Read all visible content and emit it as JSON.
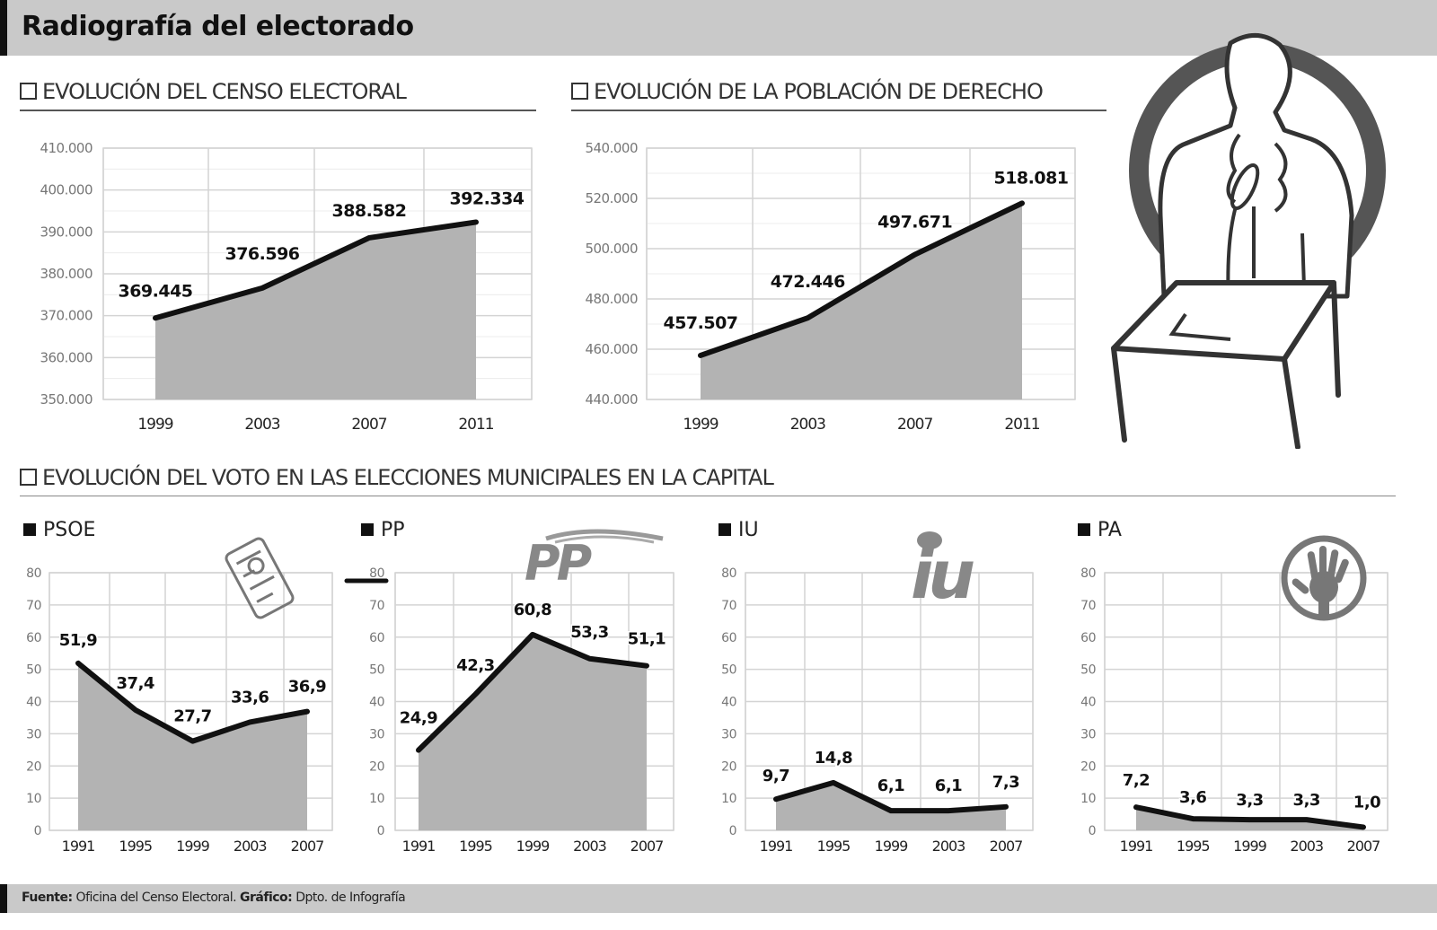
{
  "header": {
    "title": "Radiografía del electorado"
  },
  "sections": {
    "censo_title": "EVOLUCIÓN DEL CENSO ELECTORAL",
    "poblacion_title": "EVOLUCIÓN DE LA POBLACIÓN DE DERECHO",
    "voto_title": "EVOLUCIÓN DEL VOTO EN LAS ELECCIONES MUNICIPALES EN LA CAPITAL"
  },
  "parties": {
    "psoe": "PSOE",
    "pp": "PP",
    "iu": "IU",
    "pa": "PA"
  },
  "logos": {
    "pp_logo_text": "PP",
    "iu_logo_text": "iu"
  },
  "footer": {
    "source_label": "Fuente:",
    "source_value": "Oficina del Censo Electoral.",
    "graphic_label": "Gráfico:",
    "graphic_value": "Dpto. de Infografía"
  },
  "colors": {
    "fill": "#b3b3b3",
    "line": "#111111",
    "grid": "#d4d4d4",
    "bar": "#c9c9c9"
  },
  "chart_data": [
    {
      "id": "censo",
      "type": "area",
      "title": "EVOLUCIÓN DEL CENSO ELECTORAL",
      "categories": [
        "1999",
        "2003",
        "2007",
        "2011"
      ],
      "values": [
        369445,
        376596,
        388582,
        392334
      ],
      "labels": [
        "369.445",
        "376.596",
        "388.582",
        "392.334"
      ],
      "ylim": [
        350000,
        410000
      ],
      "yticks": [
        410000,
        400000,
        390000,
        380000,
        370000,
        360000,
        350000
      ],
      "ytick_labels": [
        "410.000",
        "400.000",
        "390.000",
        "380.000",
        "370.000",
        "360.000",
        "350.000"
      ],
      "grid": true
    },
    {
      "id": "poblacion",
      "type": "area",
      "title": "EVOLUCIÓN DE LA POBLACIÓN DE DERECHO",
      "categories": [
        "1999",
        "2003",
        "2007",
        "2011"
      ],
      "values": [
        457507,
        472446,
        497671,
        518081
      ],
      "labels": [
        "457.507",
        "472.446",
        "497.671",
        "518.081"
      ],
      "ylim": [
        440000,
        540000
      ],
      "yticks": [
        540000,
        520000,
        500000,
        480000,
        460000,
        440000
      ],
      "ytick_labels": [
        "540.000",
        "520.000",
        "500.000",
        "480.000",
        "460.000",
        "440.000"
      ],
      "grid": true
    },
    {
      "id": "psoe",
      "type": "area",
      "title": "PSOE",
      "categories": [
        "1991",
        "1995",
        "1999",
        "2003",
        "2007"
      ],
      "values": [
        51.9,
        37.4,
        27.7,
        33.6,
        36.9
      ],
      "labels": [
        "51,9",
        "37,4",
        "27,7",
        "33,6",
        "36,9"
      ],
      "ylim": [
        0,
        80
      ],
      "yticks": [
        80,
        70,
        60,
        50,
        40,
        30,
        20,
        10,
        0
      ],
      "grid": true
    },
    {
      "id": "pp",
      "type": "area",
      "title": "PP",
      "categories": [
        "1991",
        "1995",
        "1999",
        "2003",
        "2007"
      ],
      "values": [
        24.9,
        42.3,
        60.8,
        53.3,
        51.1
      ],
      "labels": [
        "24,9",
        "42,3",
        "60,8",
        "53,3",
        "51,1"
      ],
      "ylim": [
        0,
        80
      ],
      "yticks": [
        80,
        70,
        60,
        50,
        40,
        30,
        20,
        10,
        0
      ],
      "grid": true
    },
    {
      "id": "iu",
      "type": "area",
      "title": "IU",
      "categories": [
        "1991",
        "1995",
        "1999",
        "2003",
        "2007"
      ],
      "values": [
        9.7,
        14.8,
        6.1,
        6.1,
        7.3
      ],
      "labels": [
        "9,7",
        "14,8",
        "6,1",
        "6,1",
        "7,3"
      ],
      "ylim": [
        0,
        80
      ],
      "yticks": [
        80,
        70,
        60,
        50,
        40,
        30,
        20,
        10,
        0
      ],
      "grid": true
    },
    {
      "id": "pa",
      "type": "area",
      "title": "PA",
      "categories": [
        "1991",
        "1995",
        "1999",
        "2003",
        "2007"
      ],
      "values": [
        7.2,
        3.6,
        3.3,
        3.3,
        1.0
      ],
      "labels": [
        "7,2",
        "3,6",
        "3,3",
        "3,3",
        "1,0"
      ],
      "ylim": [
        0,
        80
      ],
      "yticks": [
        80,
        70,
        60,
        50,
        40,
        30,
        20,
        10,
        0
      ],
      "grid": true
    }
  ]
}
